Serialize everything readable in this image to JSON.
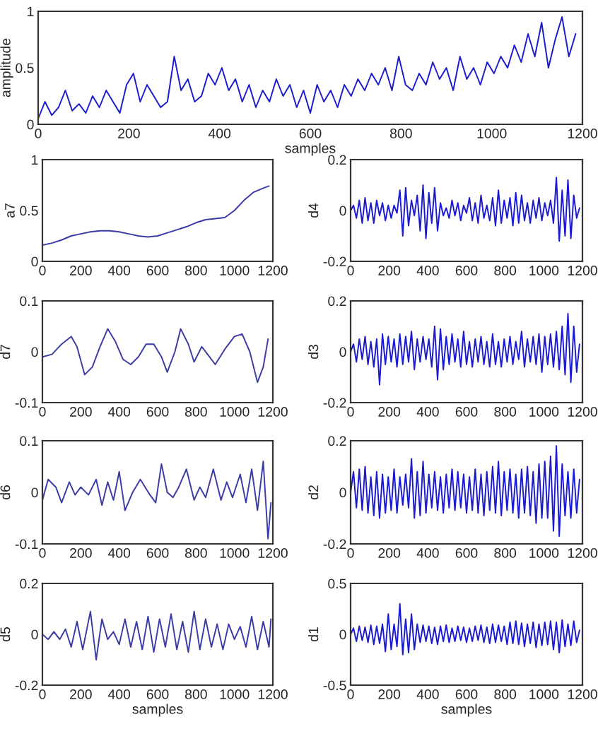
{
  "chart_data": [
    {
      "type": "line",
      "ylabel": "amplitude",
      "xlabel": "samples",
      "xlim": [
        0,
        1200
      ],
      "ylim": [
        0,
        1
      ],
      "xticks": [
        0,
        200,
        400,
        600,
        800,
        1000,
        1200
      ],
      "yticks": [
        0,
        0.5,
        1
      ],
      "x": [
        0,
        15,
        30,
        45,
        60,
        75,
        90,
        105,
        120,
        135,
        150,
        165,
        180,
        195,
        210,
        225,
        240,
        255,
        270,
        285,
        300,
        315,
        330,
        345,
        360,
        375,
        390,
        405,
        420,
        435,
        450,
        465,
        480,
        495,
        510,
        525,
        540,
        555,
        570,
        585,
        600,
        615,
        630,
        645,
        660,
        675,
        690,
        705,
        720,
        735,
        750,
        765,
        780,
        795,
        810,
        825,
        840,
        855,
        870,
        885,
        900,
        915,
        930,
        945,
        960,
        975,
        990,
        1005,
        1020,
        1035,
        1050,
        1065,
        1080,
        1095,
        1110,
        1125,
        1140,
        1155,
        1170,
        1185
      ],
      "series": [
        {
          "color": "#1a1ad0",
          "values": [
            0.05,
            0.2,
            0.08,
            0.15,
            0.3,
            0.12,
            0.18,
            0.1,
            0.25,
            0.15,
            0.3,
            0.2,
            0.1,
            0.35,
            0.45,
            0.2,
            0.35,
            0.25,
            0.15,
            0.2,
            0.6,
            0.3,
            0.4,
            0.2,
            0.25,
            0.45,
            0.35,
            0.5,
            0.3,
            0.4,
            0.2,
            0.35,
            0.15,
            0.3,
            0.2,
            0.4,
            0.25,
            0.35,
            0.15,
            0.3,
            0.1,
            0.35,
            0.2,
            0.3,
            0.15,
            0.35,
            0.25,
            0.4,
            0.3,
            0.45,
            0.35,
            0.5,
            0.3,
            0.6,
            0.35,
            0.3,
            0.45,
            0.35,
            0.55,
            0.4,
            0.5,
            0.3,
            0.6,
            0.4,
            0.5,
            0.35,
            0.55,
            0.45,
            0.6,
            0.5,
            0.7,
            0.55,
            0.8,
            0.6,
            0.9,
            0.5,
            0.75,
            0.95,
            0.6,
            0.8
          ]
        }
      ]
    },
    {
      "type": "line",
      "ylabel": "a7",
      "xlim": [
        0,
        1200
      ],
      "ylim": [
        0,
        1
      ],
      "xticks": [
        0,
        200,
        400,
        600,
        800,
        1000,
        1200
      ],
      "yticks": [
        0,
        0.5,
        1
      ],
      "x": [
        0,
        50,
        100,
        150,
        200,
        250,
        300,
        350,
        400,
        450,
        500,
        550,
        600,
        650,
        700,
        750,
        800,
        850,
        900,
        950,
        1000,
        1050,
        1100,
        1150,
        1180
      ],
      "series": [
        {
          "color": "#3a3aa8",
          "values": [
            0.16,
            0.18,
            0.21,
            0.25,
            0.27,
            0.29,
            0.3,
            0.3,
            0.29,
            0.27,
            0.25,
            0.24,
            0.25,
            0.28,
            0.31,
            0.34,
            0.38,
            0.41,
            0.42,
            0.43,
            0.5,
            0.6,
            0.68,
            0.72,
            0.74
          ]
        }
      ]
    },
    {
      "type": "line",
      "ylabel": "d4",
      "xlim": [
        0,
        1200
      ],
      "ylim": [
        -0.2,
        0.2
      ],
      "xticks": [
        0,
        200,
        400,
        600,
        800,
        1000,
        1200
      ],
      "yticks": [
        -0.2,
        0,
        0.2
      ],
      "x": [
        0,
        15,
        30,
        45,
        60,
        75,
        90,
        105,
        120,
        135,
        150,
        165,
        180,
        195,
        210,
        225,
        240,
        255,
        270,
        285,
        300,
        315,
        330,
        345,
        360,
        375,
        390,
        405,
        420,
        435,
        450,
        465,
        480,
        495,
        510,
        525,
        540,
        555,
        570,
        585,
        600,
        615,
        630,
        645,
        660,
        675,
        690,
        705,
        720,
        735,
        750,
        765,
        780,
        795,
        810,
        825,
        840,
        855,
        870,
        885,
        900,
        915,
        930,
        945,
        960,
        975,
        990,
        1005,
        1020,
        1035,
        1050,
        1065,
        1080,
        1095,
        1110,
        1125,
        1140,
        1155,
        1170,
        1185
      ],
      "series": [
        {
          "color": "#1a1ad0",
          "values": [
            0,
            0.02,
            -0.03,
            0.04,
            -0.05,
            0.05,
            -0.04,
            0.03,
            -0.05,
            0.04,
            -0.02,
            0.03,
            -0.04,
            0.02,
            -0.03,
            0.02,
            -0.01,
            0.08,
            -0.1,
            0.09,
            -0.06,
            0.04,
            -0.02,
            0.06,
            -0.08,
            0.1,
            -0.11,
            0.07,
            -0.05,
            0.09,
            -0.08,
            0.03,
            -0.02,
            0.01,
            -0.03,
            0.04,
            -0.02,
            0.03,
            -0.04,
            0.02,
            -0.01,
            0.05,
            -0.04,
            0.03,
            -0.05,
            0.06,
            -0.03,
            0.02,
            -0.04,
            0.05,
            -0.06,
            0.08,
            -0.05,
            0.04,
            -0.03,
            0.05,
            -0.06,
            0.07,
            -0.05,
            0.06,
            -0.04,
            0.03,
            -0.05,
            0.04,
            -0.03,
            0.05,
            -0.04,
            0.03,
            -0.02,
            0.04,
            -0.05,
            0.13,
            -0.12,
            0.08,
            -0.1,
            0.12,
            -0.11,
            0.06,
            -0.03,
            0.01
          ]
        }
      ]
    },
    {
      "type": "line",
      "ylabel": "d7",
      "xlim": [
        0,
        1200
      ],
      "ylim": [
        -0.1,
        0.1
      ],
      "xticks": [
        0,
        200,
        400,
        600,
        800,
        1000,
        1200
      ],
      "yticks": [
        -0.1,
        0,
        0.1
      ],
      "x": [
        0,
        50,
        100,
        150,
        180,
        220,
        260,
        300,
        340,
        380,
        420,
        460,
        500,
        540,
        580,
        620,
        650,
        690,
        720,
        760,
        790,
        830,
        870,
        900,
        950,
        1000,
        1040,
        1080,
        1120,
        1150,
        1175
      ],
      "series": [
        {
          "color": "#3a3aa8",
          "values": [
            -0.01,
            -0.005,
            0.015,
            0.03,
            0.01,
            -0.045,
            -0.03,
            0.01,
            0.045,
            0.02,
            -0.015,
            -0.025,
            -0.01,
            0.015,
            0.015,
            -0.01,
            -0.04,
            0.0,
            0.045,
            0.015,
            -0.02,
            0.01,
            -0.01,
            -0.025,
            0.005,
            0.03,
            0.035,
            0.0,
            -0.06,
            -0.03,
            0.025
          ]
        }
      ]
    },
    {
      "type": "line",
      "ylabel": "d3",
      "xlim": [
        0,
        1200
      ],
      "ylim": [
        -0.2,
        0.2
      ],
      "xticks": [
        0,
        200,
        400,
        600,
        800,
        1000,
        1200
      ],
      "yticks": [
        -0.2,
        0,
        0.2
      ],
      "x": [
        0,
        15,
        30,
        45,
        60,
        75,
        90,
        105,
        120,
        135,
        150,
        165,
        180,
        195,
        210,
        225,
        240,
        255,
        270,
        285,
        300,
        315,
        330,
        345,
        360,
        375,
        390,
        405,
        420,
        435,
        450,
        465,
        480,
        495,
        510,
        525,
        540,
        555,
        570,
        585,
        600,
        615,
        630,
        645,
        660,
        675,
        690,
        705,
        720,
        735,
        750,
        765,
        780,
        795,
        810,
        825,
        840,
        855,
        870,
        885,
        900,
        915,
        930,
        945,
        960,
        975,
        990,
        1005,
        1020,
        1035,
        1050,
        1065,
        1080,
        1095,
        1110,
        1125,
        1140,
        1155,
        1170,
        1185
      ],
      "series": [
        {
          "color": "#1a1ad0",
          "values": [
            0,
            0.03,
            -0.04,
            0.05,
            -0.03,
            0.06,
            -0.05,
            0.04,
            -0.06,
            0.05,
            -0.13,
            0.07,
            -0.05,
            0.06,
            -0.04,
            0.05,
            -0.06,
            0.07,
            -0.05,
            0.06,
            -0.04,
            0.08,
            -0.07,
            0.05,
            -0.04,
            0.06,
            -0.03,
            0.05,
            -0.06,
            0.1,
            -0.11,
            0.09,
            -0.07,
            0.06,
            -0.05,
            0.07,
            -0.04,
            0.05,
            -0.06,
            0.08,
            -0.05,
            0.04,
            -0.06,
            0.05,
            -0.04,
            0.06,
            -0.05,
            0.04,
            -0.06,
            0.07,
            -0.05,
            0.04,
            -0.06,
            0.05,
            -0.04,
            0.06,
            -0.05,
            0.04,
            -0.03,
            0.08,
            -0.06,
            0.05,
            -0.04,
            0.06,
            -0.05,
            0.07,
            -0.08,
            0.06,
            -0.05,
            0.07,
            -0.06,
            0.08,
            -0.07,
            0.1,
            -0.09,
            0.15,
            -0.12,
            0.1,
            -0.08,
            0.03
          ]
        }
      ]
    },
    {
      "type": "line",
      "ylabel": "d6",
      "xlim": [
        0,
        1200
      ],
      "ylim": [
        -0.1,
        0.1
      ],
      "xticks": [
        0,
        200,
        400,
        600,
        800,
        1000,
        1200
      ],
      "yticks": [
        -0.1,
        0,
        0.1
      ],
      "x": [
        0,
        30,
        70,
        100,
        140,
        170,
        200,
        240,
        280,
        310,
        340,
        370,
        400,
        430,
        470,
        510,
        560,
        590,
        620,
        650,
        680,
        710,
        750,
        790,
        820,
        850,
        890,
        930,
        960,
        990,
        1030,
        1060,
        1090,
        1120,
        1150,
        1175,
        1190
      ],
      "series": [
        {
          "color": "#3a3aa8",
          "values": [
            -0.015,
            0.025,
            0.01,
            -0.02,
            0.02,
            -0.005,
            0.01,
            -0.005,
            0.025,
            -0.025,
            0.02,
            -0.015,
            0.04,
            -0.035,
            0.0,
            0.025,
            -0.005,
            -0.02,
            0.055,
            0.0,
            -0.01,
            0.01,
            0.045,
            -0.015,
            0.01,
            -0.01,
            0.045,
            -0.015,
            0.02,
            -0.01,
            0.035,
            -0.02,
            0.045,
            -0.035,
            0.06,
            -0.09,
            -0.02
          ]
        }
      ]
    },
    {
      "type": "line",
      "ylabel": "d2",
      "xlim": [
        0,
        1200
      ],
      "ylim": [
        -0.2,
        0.2
      ],
      "xticks": [
        0,
        200,
        400,
        600,
        800,
        1000,
        1200
      ],
      "yticks": [
        -0.2,
        0,
        0.2
      ],
      "x": [
        0,
        15,
        30,
        45,
        60,
        75,
        90,
        105,
        120,
        135,
        150,
        165,
        180,
        195,
        210,
        225,
        240,
        255,
        270,
        285,
        300,
        315,
        330,
        345,
        360,
        375,
        390,
        405,
        420,
        435,
        450,
        465,
        480,
        495,
        510,
        525,
        540,
        555,
        570,
        585,
        600,
        615,
        630,
        645,
        660,
        675,
        690,
        705,
        720,
        735,
        750,
        765,
        780,
        795,
        810,
        825,
        840,
        855,
        870,
        885,
        900,
        915,
        930,
        945,
        960,
        975,
        990,
        1005,
        1020,
        1035,
        1050,
        1065,
        1080,
        1095,
        1110,
        1125,
        1140,
        1155,
        1170,
        1185
      ],
      "series": [
        {
          "color": "#1a1ad0",
          "values": [
            0,
            0.08,
            -0.06,
            0.09,
            -0.07,
            0.1,
            -0.08,
            0.06,
            -0.09,
            0.08,
            -0.1,
            0.07,
            -0.08,
            0.06,
            -0.07,
            0.09,
            -0.08,
            0.06,
            -0.05,
            0.07,
            -0.06,
            0.13,
            -0.1,
            0.08,
            -0.09,
            0.12,
            -0.08,
            0.07,
            -0.06,
            0.08,
            -0.07,
            0.06,
            -0.08,
            0.07,
            -0.06,
            0.09,
            -0.07,
            0.08,
            -0.06,
            0.07,
            -0.08,
            0.06,
            -0.07,
            0.09,
            -0.08,
            0.07,
            -0.09,
            0.08,
            -0.07,
            0.1,
            -0.08,
            0.12,
            -0.09,
            0.08,
            -0.07,
            0.09,
            -0.08,
            0.07,
            -0.1,
            0.09,
            -0.08,
            0.1,
            -0.09,
            0.08,
            -0.12,
            0.11,
            -0.1,
            0.12,
            -0.1,
            0.14,
            -0.15,
            0.18,
            -0.17,
            0.11,
            -0.09,
            0.08,
            -0.1,
            0.09,
            -0.08,
            0.05
          ]
        }
      ]
    },
    {
      "type": "line",
      "ylabel": "d5",
      "xlabel": "samples",
      "xlim": [
        0,
        1200
      ],
      "ylim": [
        -0.2,
        0.2
      ],
      "xticks": [
        0,
        200,
        400,
        600,
        800,
        1000,
        1200
      ],
      "yticks": [
        -0.2,
        0,
        0.2
      ],
      "x": [
        0,
        30,
        60,
        90,
        120,
        150,
        180,
        210,
        250,
        280,
        310,
        340,
        370,
        400,
        430,
        460,
        490,
        520,
        550,
        580,
        610,
        640,
        670,
        700,
        730,
        760,
        790,
        820,
        850,
        880,
        910,
        940,
        970,
        1000,
        1030,
        1060,
        1090,
        1120,
        1150,
        1180,
        1190
      ],
      "series": [
        {
          "color": "#3a3aa8",
          "values": [
            0.0,
            -0.02,
            0.01,
            -0.02,
            0.02,
            -0.05,
            0.05,
            -0.06,
            0.09,
            -0.1,
            0.06,
            -0.02,
            0.01,
            -0.04,
            0.06,
            -0.05,
            0.05,
            -0.06,
            0.07,
            -0.07,
            0.06,
            -0.05,
            0.08,
            -0.06,
            0.05,
            -0.07,
            0.09,
            -0.06,
            0.06,
            -0.05,
            0.04,
            -0.06,
            0.04,
            -0.02,
            0.03,
            -0.05,
            0.07,
            -0.06,
            0.05,
            -0.05,
            0.06
          ]
        }
      ]
    },
    {
      "type": "line",
      "ylabel": "d1",
      "xlabel": "samples",
      "xlim": [
        0,
        1200
      ],
      "ylim": [
        -0.5,
        0.5
      ],
      "xticks": [
        0,
        200,
        400,
        600,
        800,
        1000,
        1200
      ],
      "yticks": [
        -0.5,
        0,
        0.5
      ],
      "x": [
        0,
        15,
        30,
        45,
        60,
        75,
        90,
        105,
        120,
        135,
        150,
        165,
        180,
        195,
        210,
        225,
        240,
        255,
        270,
        285,
        300,
        315,
        330,
        345,
        360,
        375,
        390,
        405,
        420,
        435,
        450,
        465,
        480,
        495,
        510,
        525,
        540,
        555,
        570,
        585,
        600,
        615,
        630,
        645,
        660,
        675,
        690,
        705,
        720,
        735,
        750,
        765,
        780,
        795,
        810,
        825,
        840,
        855,
        870,
        885,
        900,
        915,
        930,
        945,
        960,
        975,
        990,
        1005,
        1020,
        1035,
        1050,
        1065,
        1080,
        1095,
        1110,
        1125,
        1140,
        1155,
        1170,
        1185
      ],
      "series": [
        {
          "color": "#1a1ad0",
          "values": [
            0,
            0.06,
            -0.07,
            0.08,
            -0.06,
            0.07,
            -0.08,
            0.09,
            -0.1,
            0.08,
            -0.09,
            0.1,
            -0.17,
            0.2,
            -0.15,
            0.1,
            -0.12,
            0.3,
            -0.2,
            0.15,
            -0.18,
            0.2,
            -0.15,
            0.1,
            -0.08,
            0.09,
            -0.07,
            0.08,
            -0.09,
            0.07,
            -0.1,
            0.08,
            -0.07,
            0.09,
            -0.08,
            0.06,
            -0.07,
            0.08,
            -0.06,
            0.07,
            -0.08,
            0.06,
            -0.07,
            0.08,
            -0.06,
            0.09,
            -0.08,
            0.07,
            -0.09,
            0.1,
            -0.08,
            0.09,
            -0.07,
            0.08,
            -0.1,
            0.12,
            -0.09,
            0.13,
            -0.1,
            0.11,
            -0.12,
            0.1,
            -0.09,
            0.12,
            -0.13,
            0.1,
            -0.11,
            0.12,
            -0.1,
            0.13,
            -0.15,
            0.12,
            -0.18,
            0.14,
            -0.12,
            0.1,
            -0.11,
            0.13,
            -0.08,
            0.04
          ]
        }
      ]
    }
  ]
}
